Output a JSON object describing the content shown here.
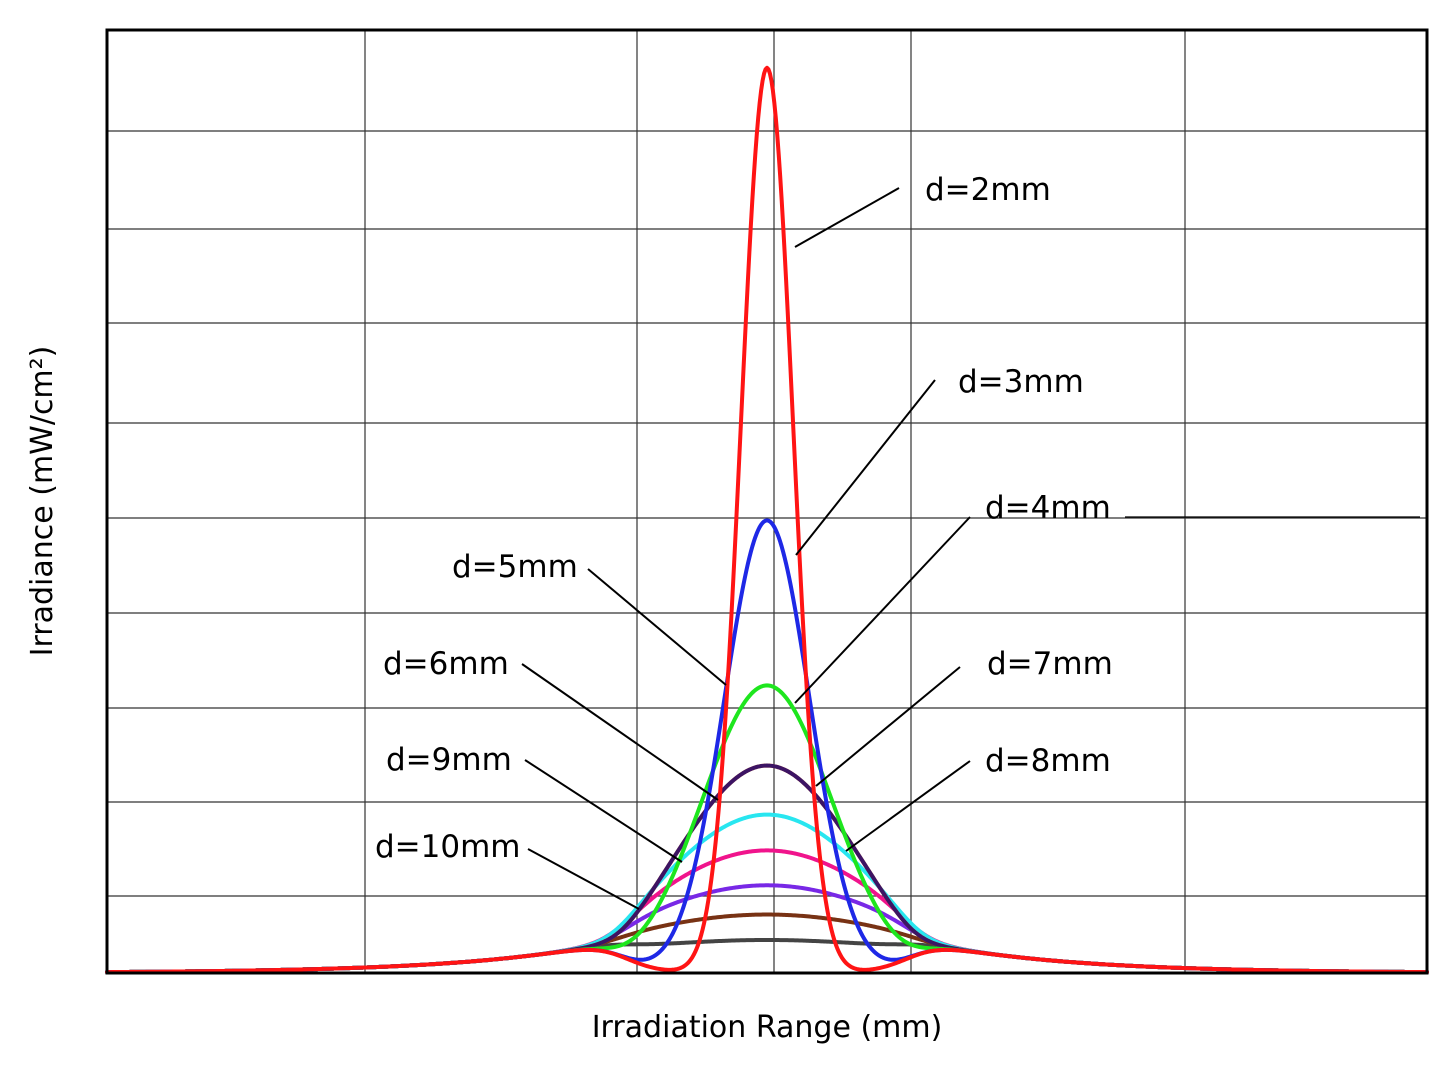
{
  "chart_data": {
    "type": "line",
    "title": "",
    "xlabel": "Irradiation Range (mm)",
    "ylabel": "Irradiance (mW/cm²)",
    "xlim": [
      -24,
      24
    ],
    "ylim": [
      0,
      10
    ],
    "grid": true,
    "x_tick_labels": [],
    "y_tick_labels": [],
    "series": [
      {
        "name": "d=2mm",
        "color": "#ff1414",
        "peak": 9.6,
        "width": 0.95
      },
      {
        "name": "d=3mm",
        "color": "#1e28e6",
        "peak": 4.8,
        "width": 1.55
      },
      {
        "name": "d=4mm",
        "color": "#1ee61e",
        "peak": 3.05,
        "width": 2.35
      },
      {
        "name": "d=5mm",
        "color": "#3c1464",
        "peak": 2.2,
        "width": 3.2
      },
      {
        "name": "d=6mm",
        "color": "#ff7814",
        "peak": 2.2,
        "width": 3.2
      },
      {
        "name": "d=7mm",
        "color": "#28e6f0",
        "peak": 1.68,
        "width": 3.9
      },
      {
        "name": "d=8mm",
        "color": "#f0148c",
        "peak": 1.3,
        "width": 4.5
      },
      {
        "name": "d=9mm",
        "color": "#7828e6",
        "peak": 0.93,
        "width": 5.1
      },
      {
        "name": "d=10mm",
        "color": "#783214",
        "peak": 0.62,
        "width": 5.8
      },
      {
        "name": "",
        "color": "#444444",
        "peak": 0.35,
        "width": 6.6
      }
    ],
    "annotations": [
      {
        "text": "d=2mm",
        "series": 0
      },
      {
        "text": "d=3mm",
        "series": 1
      },
      {
        "text": "d=4mm",
        "series": 2
      },
      {
        "text": "d=5mm",
        "series": 3
      },
      {
        "text": "d=6mm",
        "series": 4
      },
      {
        "text": "d=7mm",
        "series": 5
      },
      {
        "text": "d=8mm",
        "series": 6
      },
      {
        "text": "d=9mm",
        "series": 7
      },
      {
        "text": "d=10mm",
        "series": 8
      }
    ]
  }
}
